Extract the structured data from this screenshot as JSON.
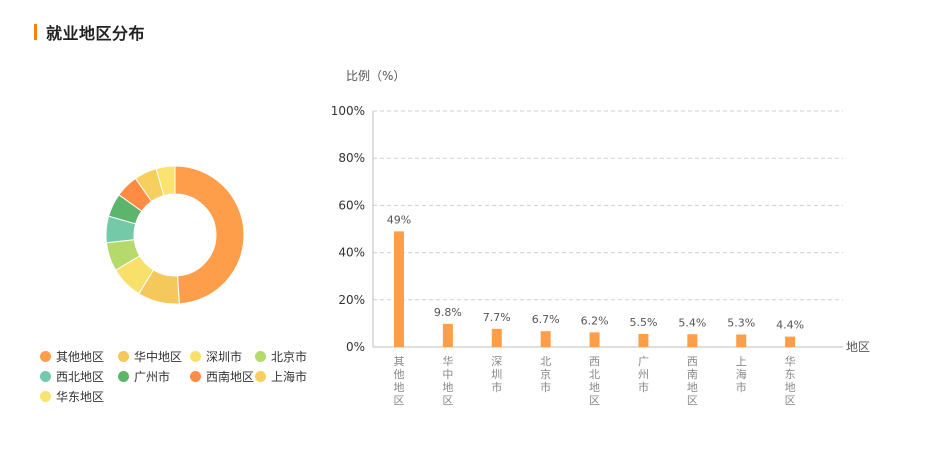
{
  "page": {
    "title": "就业地区分布"
  },
  "colors": {
    "accent": "#ff7f0e",
    "bar": "#ff9e4a",
    "grid": "#cfcfcf",
    "axis": "#bdbdbd"
  },
  "chart_data": [
    {
      "type": "pie",
      "style": "donut",
      "legend_position": "bottom-left",
      "categories": [
        "其他地区",
        "华中地区",
        "深圳市",
        "北京市",
        "西北地区",
        "广州市",
        "西南地区",
        "上海市",
        "华东地区"
      ],
      "values": [
        49,
        9.8,
        7.7,
        6.7,
        6.2,
        5.5,
        5.4,
        5.3,
        4.4
      ],
      "colors": [
        "#ff9e4a",
        "#f5c85b",
        "#f9e06b",
        "#b5d96a",
        "#74c9a9",
        "#5db46b",
        "#ff8c42",
        "#f7cf5e",
        "#fae36e"
      ]
    },
    {
      "type": "bar",
      "title": "",
      "ylabel": "比例（%）",
      "xlabel": "地区",
      "ylim": [
        0,
        100
      ],
      "yticks": [
        "0%",
        "20%",
        "40%",
        "60%",
        "80%",
        "100%"
      ],
      "grid": true,
      "categories": [
        "其他地区",
        "华中地区",
        "深圳市",
        "北京市",
        "西北地区",
        "广州市",
        "西南地区",
        "上海市",
        "华东地区"
      ],
      "values": [
        49,
        9.8,
        7.7,
        6.7,
        6.2,
        5.5,
        5.4,
        5.3,
        4.4
      ],
      "data_labels": [
        "49%",
        "9.8%",
        "7.7%",
        "6.7%",
        "6.2%",
        "5.5%",
        "5.4%",
        "5.3%",
        "4.4%"
      ]
    }
  ]
}
